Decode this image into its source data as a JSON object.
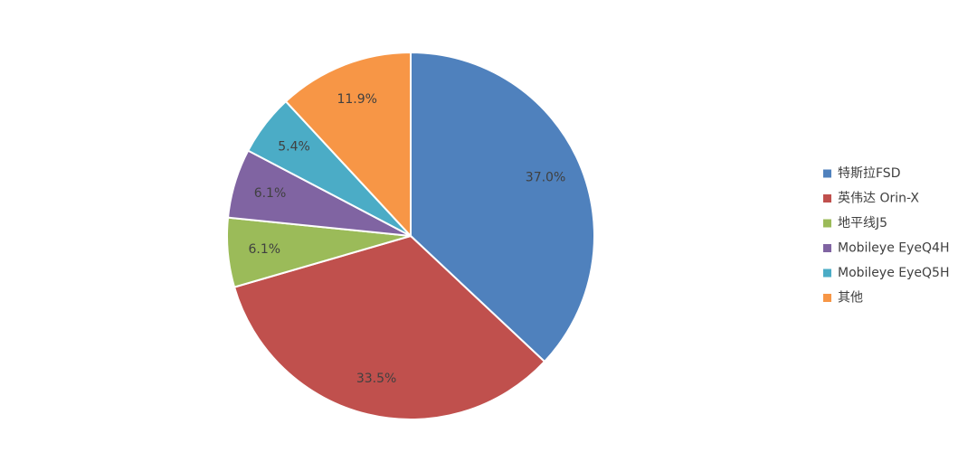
{
  "chart_data": {
    "type": "pie",
    "categories": [
      "特斯拉FSD",
      "英伟达 Orin-X",
      "地平线J5",
      "Mobileye EyeQ4H",
      "Mobileye EyeQ5H",
      "其他"
    ],
    "values": [
      37.0,
      33.5,
      6.1,
      6.1,
      5.4,
      11.9
    ],
    "value_labels": [
      "37.0%",
      "33.5%",
      "6.1%",
      "6.1%",
      "5.4%",
      "11.9%"
    ],
    "colors": [
      "#4f81bd",
      "#c0504d",
      "#9bbb59",
      "#8064a2",
      "#4bacc6",
      "#f79646"
    ],
    "legend": "right"
  }
}
